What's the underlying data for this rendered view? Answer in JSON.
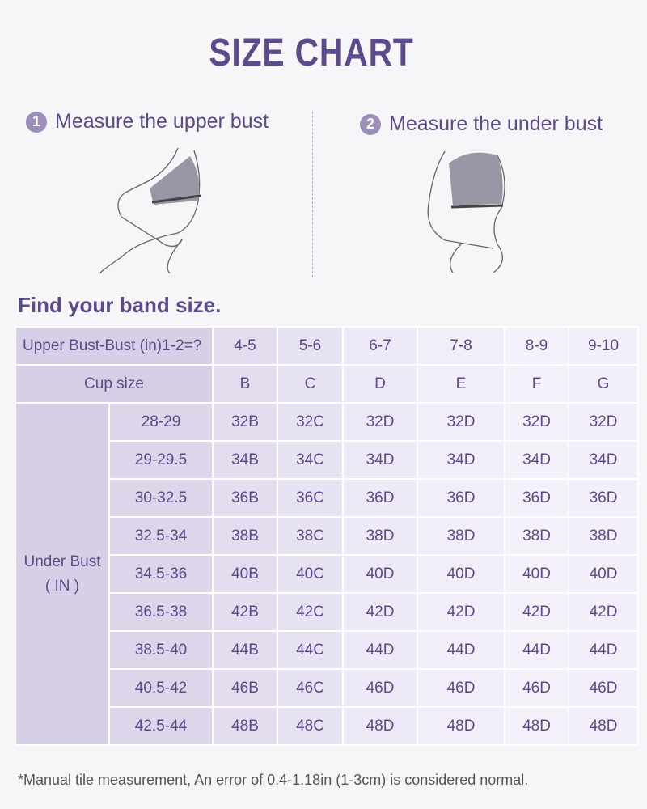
{
  "title": "SIZE CHART",
  "steps": [
    {
      "num": "1",
      "label": "Measure the upper bust"
    },
    {
      "num": "2",
      "label": "Measure the under bust"
    }
  ],
  "subtitle": "Find your band size.",
  "table": {
    "header_label": "Upper Bust-Bust (in)1-2=?",
    "differences": [
      "4-5",
      "5-6",
      "6-7",
      "7-8",
      "8-9",
      "9-10"
    ],
    "cup_label": "Cup size",
    "cups": [
      "B",
      "C",
      "D",
      "E",
      "F",
      "G"
    ],
    "row_group_label": "Under Bust",
    "row_group_unit": "( IN )",
    "rows": [
      {
        "range": "28-29",
        "sizes": [
          "32B",
          "32C",
          "32D",
          "32D",
          "32D",
          "32D"
        ]
      },
      {
        "range": "29-29.5",
        "sizes": [
          "34B",
          "34C",
          "34D",
          "34D",
          "34D",
          "34D"
        ]
      },
      {
        "range": "30-32.5",
        "sizes": [
          "36B",
          "36C",
          "36D",
          "36D",
          "36D",
          "36D"
        ]
      },
      {
        "range": "32.5-34",
        "sizes": [
          "38B",
          "38C",
          "38D",
          "38D",
          "38D",
          "38D"
        ]
      },
      {
        "range": "34.5-36",
        "sizes": [
          "40B",
          "40C",
          "40D",
          "40D",
          "40D",
          "40D"
        ]
      },
      {
        "range": "36.5-38",
        "sizes": [
          "42B",
          "42C",
          "42D",
          "42D",
          "42D",
          "42D"
        ]
      },
      {
        "range": "38.5-40",
        "sizes": [
          "44B",
          "44C",
          "44D",
          "44D",
          "44D",
          "44D"
        ]
      },
      {
        "range": "40.5-42",
        "sizes": [
          "46B",
          "46C",
          "46D",
          "46D",
          "46D",
          "46D"
        ]
      },
      {
        "range": "42.5-44",
        "sizes": [
          "48B",
          "48C",
          "48D",
          "48D",
          "48D",
          "48D"
        ]
      }
    ]
  },
  "note": "*Manual tile measurement, An error of 0.4-1.18in (1-3cm) is considered normal."
}
